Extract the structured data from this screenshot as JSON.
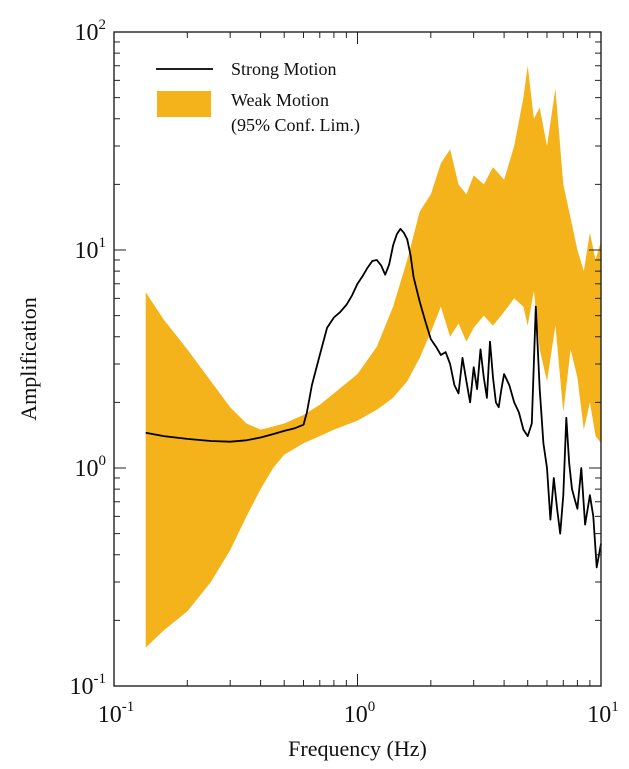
{
  "chart_data": {
    "type": "line",
    "xlabel": "Frequency (Hz)",
    "ylabel": "Amplification",
    "xscale": "log",
    "yscale": "log",
    "xlim": [
      0.1,
      10
    ],
    "ylim": [
      0.1,
      100
    ],
    "grid": false,
    "legend_placement": "top-left",
    "x_ticks": [
      {
        "value": 0.1,
        "base": "10",
        "exp": "-1"
      },
      {
        "value": 1,
        "base": "10",
        "exp": "0"
      },
      {
        "value": 10,
        "base": "10",
        "exp": "1"
      }
    ],
    "y_ticks": [
      {
        "value": 0.1,
        "base": "10",
        "exp": "-1"
      },
      {
        "value": 1,
        "base": "10",
        "exp": "0"
      },
      {
        "value": 10,
        "base": "10",
        "exp": "1"
      },
      {
        "value": 100,
        "base": "10",
        "exp": "2"
      }
    ],
    "series": [
      {
        "name": "Strong Motion",
        "kind": "line",
        "color": "#000000",
        "x": [
          0.135,
          0.16,
          0.2,
          0.25,
          0.3,
          0.35,
          0.4,
          0.45,
          0.5,
          0.55,
          0.6,
          0.62,
          0.65,
          0.7,
          0.75,
          0.8,
          0.85,
          0.9,
          0.95,
          1.0,
          1.05,
          1.1,
          1.15,
          1.2,
          1.25,
          1.3,
          1.35,
          1.4,
          1.45,
          1.5,
          1.55,
          1.6,
          1.65,
          1.7,
          1.8,
          1.9,
          2.0,
          2.1,
          2.2,
          2.3,
          2.4,
          2.5,
          2.6,
          2.7,
          2.8,
          2.9,
          3.0,
          3.1,
          3.2,
          3.3,
          3.4,
          3.5,
          3.6,
          3.7,
          3.8,
          3.9,
          4.0,
          4.2,
          4.4,
          4.6,
          4.8,
          5.0,
          5.2,
          5.4,
          5.6,
          5.8,
          6.0,
          6.2,
          6.4,
          6.6,
          6.8,
          7.0,
          7.2,
          7.4,
          7.6,
          7.8,
          8.0,
          8.3,
          8.6,
          9.0,
          9.3,
          9.6,
          10.0
        ],
        "y": [
          1.45,
          1.4,
          1.36,
          1.33,
          1.32,
          1.34,
          1.38,
          1.43,
          1.48,
          1.52,
          1.58,
          1.8,
          2.4,
          3.3,
          4.4,
          4.9,
          5.2,
          5.6,
          6.2,
          7.0,
          7.6,
          8.3,
          8.9,
          9.0,
          8.5,
          7.7,
          8.6,
          10.5,
          11.8,
          12.5,
          12.0,
          11.2,
          9.5,
          7.5,
          5.8,
          4.7,
          3.9,
          3.6,
          3.3,
          3.4,
          3.0,
          2.4,
          2.2,
          3.2,
          2.5,
          2.0,
          2.9,
          2.3,
          3.5,
          2.6,
          2.1,
          3.8,
          2.6,
          2.0,
          1.9,
          2.3,
          2.7,
          2.4,
          2.0,
          1.8,
          1.5,
          1.4,
          1.6,
          5.5,
          2.3,
          1.3,
          1.0,
          0.58,
          0.9,
          0.65,
          0.5,
          0.75,
          1.7,
          1.05,
          0.8,
          0.72,
          0.65,
          1.0,
          0.55,
          0.75,
          0.6,
          0.35,
          0.45
        ]
      },
      {
        "name": "Weak Motion",
        "legend_label_line2": "(95% Conf. Lim.)",
        "kind": "band",
        "color": "#f4b31b",
        "x": [
          0.135,
          0.16,
          0.2,
          0.25,
          0.3,
          0.35,
          0.4,
          0.45,
          0.5,
          0.6,
          0.7,
          0.8,
          1.0,
          1.2,
          1.4,
          1.6,
          1.8,
          2.0,
          2.2,
          2.4,
          2.6,
          2.8,
          3.0,
          3.3,
          3.6,
          4.0,
          4.4,
          4.8,
          5.0,
          5.3,
          5.6,
          6.0,
          6.5,
          7.0,
          7.5,
          8.0,
          8.5,
          9.0,
          9.5,
          10.0
        ],
        "lower": [
          0.15,
          0.18,
          0.22,
          0.3,
          0.42,
          0.6,
          0.8,
          1.0,
          1.15,
          1.3,
          1.4,
          1.5,
          1.65,
          1.85,
          2.1,
          2.5,
          3.2,
          4.2,
          5.5,
          4.0,
          4.6,
          3.8,
          4.4,
          5.0,
          4.5,
          5.2,
          6.0,
          5.5,
          4.5,
          6.5,
          3.5,
          2.5,
          4.5,
          1.8,
          3.5,
          2.6,
          1.5,
          2.0,
          1.4,
          1.3
        ],
        "upper": [
          6.4,
          4.8,
          3.5,
          2.5,
          1.9,
          1.6,
          1.5,
          1.55,
          1.6,
          1.75,
          1.95,
          2.2,
          2.7,
          3.6,
          5.5,
          9.0,
          15.0,
          18.0,
          25.0,
          29.0,
          20.0,
          18.0,
          22.0,
          20.0,
          24.0,
          21.0,
          30.0,
          50.0,
          70.0,
          40.0,
          45.0,
          30.0,
          55.0,
          20.0,
          14.0,
          10.0,
          8.0,
          12.0,
          9.0,
          11.0
        ]
      }
    ]
  }
}
